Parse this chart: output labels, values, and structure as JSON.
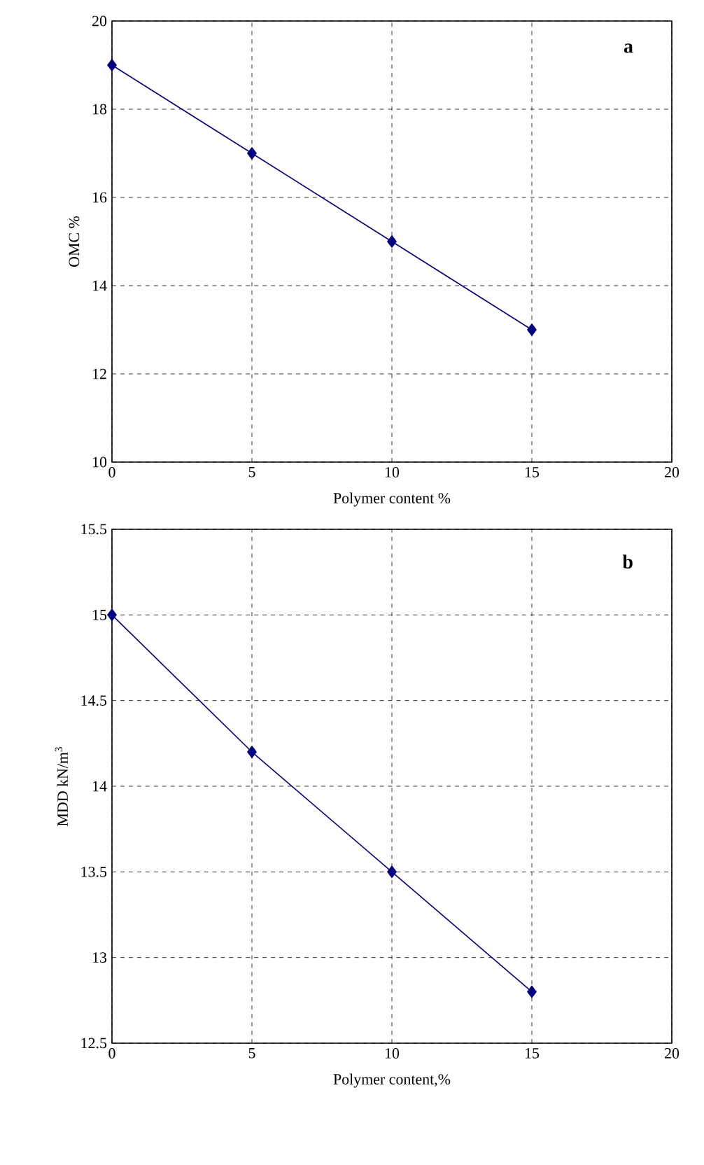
{
  "chart_data": [
    {
      "type": "line",
      "xlabel": "Polymer content %",
      "ylabel": "OMC %",
      "annotations": [
        "a"
      ],
      "x": [
        0,
        5,
        10,
        15
      ],
      "series": [
        {
          "color": "#000080",
          "values": [
            19,
            17,
            15,
            13
          ]
        }
      ],
      "xlim": [
        0,
        20
      ],
      "xticks": [
        0,
        5,
        10,
        15,
        20
      ],
      "ylim": [
        10,
        20
      ],
      "yticks": [
        10,
        12,
        14,
        16,
        18,
        20
      ],
      "grid": true,
      "marker": "diamond",
      "line_style": "solid"
    },
    {
      "type": "line",
      "xlabel": "Polymer content,%",
      "ylabel": "MDD kN/m$^{3}$",
      "annotations": [
        "b"
      ],
      "x": [
        0,
        5,
        10,
        15
      ],
      "series": [
        {
          "color": "#000080",
          "values": [
            15,
            14.2,
            13.5,
            12.8
          ]
        }
      ],
      "xlim": [
        0,
        20
      ],
      "xticks": [
        0,
        5,
        10,
        15,
        20
      ],
      "ylim": [
        12.5,
        15.5
      ],
      "yticks": [
        12.5,
        13,
        13.5,
        14,
        14.5,
        15,
        15.5
      ],
      "grid": true,
      "marker": "diamond",
      "line_style": "solid"
    }
  ]
}
